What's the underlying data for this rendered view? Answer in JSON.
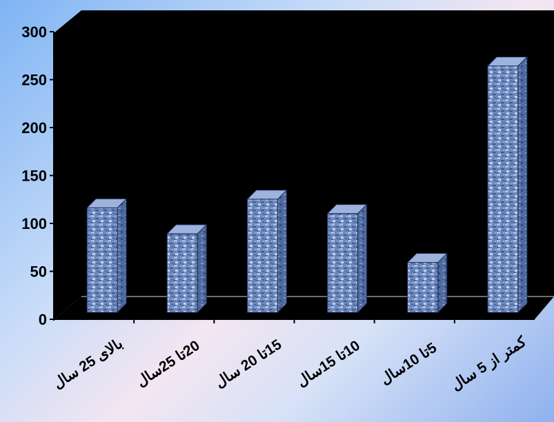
{
  "chart_data": {
    "type": "bar",
    "categories": [
      "بالای 25 سال",
      "20تا 25سال",
      "15تا 20 سال",
      "10تا 15سال",
      "5تا 10سال",
      "کمتر از 5 سال"
    ],
    "values": [
      112,
      85,
      121,
      106,
      55,
      260
    ],
    "ylim": [
      0,
      300
    ],
    "yticks": [
      "0",
      "50",
      "100",
      "150",
      "200",
      "250",
      "300"
    ],
    "grid": false,
    "legend": "none",
    "title": "",
    "xlabel": "",
    "ylabel": "",
    "style": "3d-column",
    "colors": {
      "plot_back": "#000000",
      "bar_front": "#6a86bc",
      "bar_side": "#4b6496",
      "bar_top": "#9db3dd",
      "axis": "#000000"
    }
  }
}
